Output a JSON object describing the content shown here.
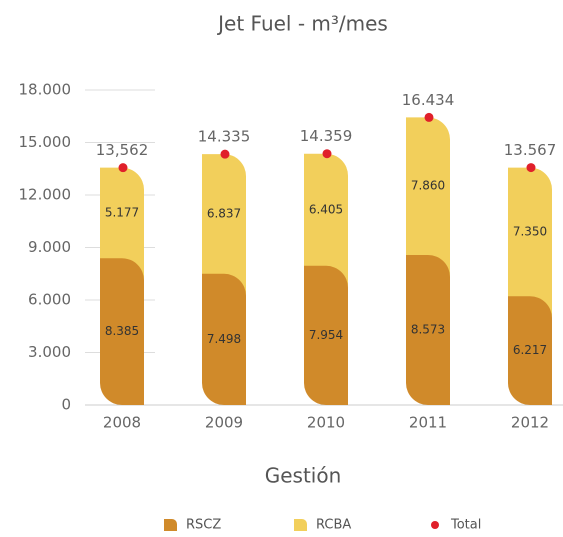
{
  "chart_data": {
    "type": "stacked_bar",
    "title": "Jet Fuel - m³/mes",
    "x_label": "Gestión",
    "categories": [
      "2008",
      "2009",
      "2010",
      "2011",
      "2012"
    ],
    "series": [
      {
        "name": "RSCZ",
        "color": "#d08a2a",
        "values": [
          8385,
          7498,
          7954,
          8573,
          6217
        ],
        "value_labels": [
          "8.385",
          "7.498",
          "7.954",
          "8.573",
          "6.217"
        ]
      },
      {
        "name": "RCBA",
        "color": "#f2cf5b",
        "values": [
          5177,
          6837,
          6405,
          7860,
          7350
        ],
        "value_labels": [
          "5.177",
          "6.837",
          "6.405",
          "7.860",
          "7.350"
        ]
      },
      {
        "name": "Total",
        "color": "#e0202a",
        "marker": "dot",
        "values": [
          13562,
          14335,
          14359,
          16434,
          13567
        ],
        "value_labels": [
          "13,562",
          "14.335",
          "14.359",
          "16.434",
          "13.567"
        ]
      }
    ],
    "ylim": [
      0,
      18000
    ],
    "yticks": [
      0,
      {
        "value": 3000,
        "label": "3.000"
      },
      {
        "value": 6000,
        "label": "6.000"
      },
      {
        "value": 9000,
        "label": "9.000"
      },
      {
        "value": 12000,
        "label": "12.000"
      },
      {
        "value": 15000,
        "label": "15.000"
      },
      {
        "value": 18000,
        "label": "18.000"
      }
    ]
  }
}
